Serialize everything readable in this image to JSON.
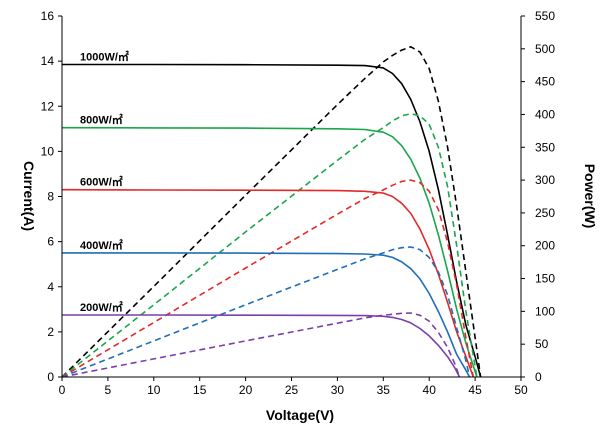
{
  "chart_data": {
    "type": "line",
    "title": "",
    "xlabel": "Voltage(V)",
    "ylabel": "Current(A)",
    "y2label": "Power(W)",
    "xlim": [
      0,
      50
    ],
    "ylim": [
      0,
      16
    ],
    "y2lim": [
      0,
      550
    ],
    "xticks": [
      "0",
      "5",
      "10",
      "15",
      "20",
      "25",
      "30",
      "35",
      "40",
      "45",
      "50"
    ],
    "yticks": [
      "0",
      "2",
      "4",
      "6",
      "8",
      "10",
      "12",
      "14",
      "16"
    ],
    "y2ticks": [
      "0",
      "50",
      "100",
      "150",
      "200",
      "250",
      "300",
      "350",
      "400",
      "450",
      "500",
      "550"
    ],
    "grid": false,
    "legend": "none",
    "series": [
      {
        "label": "1000W/㎡",
        "color": "#000000",
        "current": [
          [
            0,
            13.85
          ],
          [
            10,
            13.85
          ],
          [
            20,
            13.84
          ],
          [
            30,
            13.82
          ],
          [
            33,
            13.8
          ],
          [
            35,
            13.7
          ],
          [
            36,
            13.45
          ],
          [
            37,
            13.0
          ],
          [
            38,
            12.3
          ],
          [
            39,
            11.3
          ],
          [
            40,
            10.0
          ],
          [
            41,
            8.3
          ],
          [
            42,
            6.3
          ],
          [
            43,
            4.2
          ],
          [
            44,
            2.3
          ],
          [
            45,
            0.9
          ],
          [
            45.6,
            0
          ]
        ],
        "power": [
          [
            0,
            0
          ],
          [
            10,
            138
          ],
          [
            20,
            277
          ],
          [
            30,
            415
          ],
          [
            33,
            455
          ],
          [
            35,
            480
          ],
          [
            36,
            490
          ],
          [
            37,
            498
          ],
          [
            38,
            503
          ],
          [
            39,
            495
          ],
          [
            40,
            470
          ],
          [
            41,
            420
          ],
          [
            42,
            350
          ],
          [
            43,
            260
          ],
          [
            44,
            160
          ],
          [
            45,
            60
          ],
          [
            45.6,
            0
          ]
        ]
      },
      {
        "label": "800W/㎡",
        "color": "#1aa64a",
        "current": [
          [
            0,
            11.05
          ],
          [
            10,
            11.04
          ],
          [
            20,
            11.03
          ],
          [
            30,
            11.0
          ],
          [
            33,
            10.97
          ],
          [
            35,
            10.85
          ],
          [
            36,
            10.65
          ],
          [
            37,
            10.25
          ],
          [
            38,
            9.65
          ],
          [
            39,
            8.8
          ],
          [
            40,
            7.7
          ],
          [
            41,
            6.3
          ],
          [
            42,
            4.7
          ],
          [
            43,
            3.0
          ],
          [
            44,
            1.5
          ],
          [
            45.2,
            0
          ]
        ],
        "power": [
          [
            0,
            0
          ],
          [
            10,
            110
          ],
          [
            20,
            221
          ],
          [
            30,
            330
          ],
          [
            33,
            362
          ],
          [
            35,
            380
          ],
          [
            36,
            390
          ],
          [
            37,
            398
          ],
          [
            38,
            401
          ],
          [
            39,
            398
          ],
          [
            40,
            385
          ],
          [
            41,
            350
          ],
          [
            42,
            290
          ],
          [
            43,
            200
          ],
          [
            44,
            100
          ],
          [
            45.2,
            0
          ]
        ]
      },
      {
        "label": "600W/㎡",
        "color": "#e22a2a",
        "current": [
          [
            0,
            8.3
          ],
          [
            10,
            8.29
          ],
          [
            20,
            8.28
          ],
          [
            30,
            8.26
          ],
          [
            33,
            8.23
          ],
          [
            35,
            8.15
          ],
          [
            36,
            8.0
          ],
          [
            37,
            7.7
          ],
          [
            38,
            7.25
          ],
          [
            39,
            6.55
          ],
          [
            40,
            5.65
          ],
          [
            41,
            4.55
          ],
          [
            42,
            3.3
          ],
          [
            43,
            2.0
          ],
          [
            44,
            0.9
          ],
          [
            44.8,
            0
          ]
        ],
        "power": [
          [
            0,
            0
          ],
          [
            10,
            83
          ],
          [
            20,
            166
          ],
          [
            30,
            248
          ],
          [
            33,
            272
          ],
          [
            35,
            285
          ],
          [
            36,
            292
          ],
          [
            37,
            298
          ],
          [
            38,
            300
          ],
          [
            39,
            296
          ],
          [
            40,
            283
          ],
          [
            41,
            255
          ],
          [
            42,
            205
          ],
          [
            43,
            140
          ],
          [
            44,
            60
          ],
          [
            44.8,
            0
          ]
        ]
      },
      {
        "label": "400W/㎡",
        "color": "#1f6fb8",
        "current": [
          [
            0,
            5.5
          ],
          [
            10,
            5.5
          ],
          [
            20,
            5.49
          ],
          [
            30,
            5.47
          ],
          [
            33,
            5.45
          ],
          [
            35,
            5.4
          ],
          [
            36,
            5.3
          ],
          [
            37,
            5.1
          ],
          [
            38,
            4.8
          ],
          [
            39,
            4.35
          ],
          [
            40,
            3.7
          ],
          [
            41,
            2.9
          ],
          [
            42,
            2.0
          ],
          [
            43,
            1.0
          ],
          [
            44,
            0.3
          ],
          [
            44.4,
            0
          ]
        ],
        "power": [
          [
            0,
            0
          ],
          [
            10,
            55
          ],
          [
            20,
            110
          ],
          [
            30,
            164
          ],
          [
            33,
            180
          ],
          [
            35,
            189
          ],
          [
            36,
            194
          ],
          [
            37,
            197
          ],
          [
            38,
            198
          ],
          [
            39,
            194
          ],
          [
            40,
            182
          ],
          [
            41,
            160
          ],
          [
            42,
            125
          ],
          [
            43,
            75
          ],
          [
            44,
            25
          ],
          [
            44.4,
            0
          ]
        ]
      },
      {
        "label": "200W/㎡",
        "color": "#7b3fa8",
        "current": [
          [
            0,
            2.75
          ],
          [
            10,
            2.75
          ],
          [
            20,
            2.74
          ],
          [
            30,
            2.73
          ],
          [
            33,
            2.72
          ],
          [
            35,
            2.69
          ],
          [
            36,
            2.64
          ],
          [
            37,
            2.55
          ],
          [
            38,
            2.4
          ],
          [
            39,
            2.15
          ],
          [
            40,
            1.82
          ],
          [
            41,
            1.4
          ],
          [
            42,
            0.9
          ],
          [
            42.8,
            0.4
          ],
          [
            43.3,
            0
          ]
        ],
        "power": [
          [
            0,
            0
          ],
          [
            10,
            27.5
          ],
          [
            20,
            55
          ],
          [
            30,
            82
          ],
          [
            33,
            90
          ],
          [
            35,
            94
          ],
          [
            36,
            95.5
          ],
          [
            37,
            97
          ],
          [
            38,
            97.5
          ],
          [
            39,
            94
          ],
          [
            40,
            85
          ],
          [
            41,
            68
          ],
          [
            42,
            45
          ],
          [
            42.8,
            20
          ],
          [
            43.3,
            0
          ]
        ]
      }
    ]
  }
}
